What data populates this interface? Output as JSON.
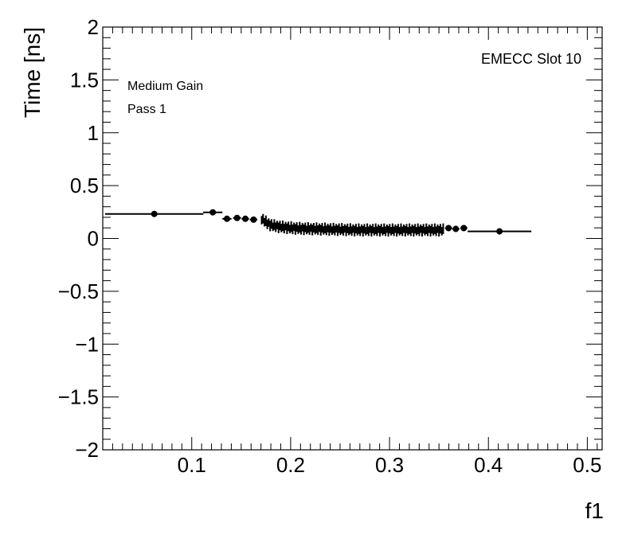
{
  "chart_data": {
    "type": "scatter",
    "xlabel": "f1",
    "ylabel": "Time [ns]",
    "xlim": [
      0.01,
      0.515
    ],
    "ylim": [
      -2,
      2
    ],
    "x_ticks": [
      "0.1",
      "0.2",
      "0.3",
      "0.4",
      "0.5"
    ],
    "y_ticks": [
      "2",
      "1.5",
      "1",
      "0.5",
      "0",
      "−0.5",
      "−1",
      "−1.5",
      "−2"
    ],
    "annotations": [
      "Medium Gain",
      "Pass 1"
    ],
    "corner_label": "EMECC Slot 10",
    "grid": false,
    "series": [
      {
        "marker_color": "#000000",
        "points": [
          {
            "x": 0.0621,
            "xerr": 0.0497,
            "y": 0.232,
            "yerr": 0.01
          },
          {
            "x": 0.1213,
            "xerr": 0.0097,
            "y": 0.247,
            "yerr": 0.015
          },
          {
            "x": 0.1356,
            "xerr": 0.0046,
            "y": 0.186,
            "yerr": 0.02
          },
          {
            "x": 0.1458,
            "xerr": 0.0041,
            "y": 0.194,
            "yerr": 0.02
          },
          {
            "x": 0.1542,
            "xerr": 0.0037,
            "y": 0.186,
            "yerr": 0.025
          },
          {
            "x": 0.1625,
            "xerr": 0.0038,
            "y": 0.178,
            "yerr": 0.02
          },
          {
            "x": 0.3597,
            "xerr": 0.0036,
            "y": 0.098,
            "yerr": 0.02
          },
          {
            "x": 0.367,
            "xerr": 0.0036,
            "y": 0.09,
            "yerr": 0.02
          },
          {
            "x": 0.3751,
            "xerr": 0.0036,
            "y": 0.098,
            "yerr": 0.02
          },
          {
            "x": 0.4112,
            "xerr": 0.0322,
            "y": 0.067,
            "yerr": 0.01
          }
        ],
        "dense_band": {
          "x_range": [
            0.17,
            0.355
          ],
          "count": 130,
          "y_values": [
            0.185,
            0.175,
            0.165,
            0.155,
            0.145,
            0.138,
            0.13,
            0.125,
            0.122,
            0.12,
            0.118,
            0.115,
            0.112,
            0.11,
            0.11,
            0.108,
            0.105,
            0.105,
            0.103,
            0.102,
            0.1,
            0.1,
            0.098,
            0.098,
            0.097,
            0.096,
            0.095,
            0.095,
            0.094,
            0.094,
            0.093,
            0.093,
            0.092,
            0.092,
            0.092,
            0.091,
            0.091,
            0.09,
            0.09,
            0.09,
            0.09,
            0.089,
            0.089,
            0.089,
            0.088,
            0.088,
            0.088,
            0.087,
            0.087,
            0.087,
            0.086,
            0.086,
            0.086,
            0.085,
            0.085,
            0.085,
            0.084,
            0.084,
            0.084,
            0.083,
            0.083,
            0.083,
            0.082,
            0.082,
            0.082,
            0.081,
            0.081,
            0.081,
            0.08,
            0.08,
            0.08,
            0.08,
            0.08,
            0.08,
            0.08,
            0.08,
            0.08,
            0.08,
            0.08,
            0.08,
            0.08,
            0.08,
            0.08,
            0.08,
            0.08,
            0.08,
            0.08,
            0.08,
            0.08,
            0.08,
            0.08,
            0.08,
            0.08,
            0.08,
            0.08,
            0.08,
            0.08,
            0.08,
            0.08,
            0.08,
            0.08,
            0.08,
            0.08,
            0.08,
            0.08,
            0.08,
            0.08,
            0.08,
            0.08,
            0.08,
            0.08,
            0.08,
            0.08,
            0.08,
            0.08,
            0.08,
            0.08,
            0.08,
            0.08,
            0.08,
            0.08,
            0.08,
            0.08,
            0.08,
            0.08,
            0.08,
            0.08,
            0.08,
            0.08,
            0.08
          ],
          "y_errors": [
            0.04,
            0.045,
            0.04,
            0.05,
            0.045,
            0.04,
            0.05,
            0.045,
            0.04,
            0.05,
            0.045,
            0.04,
            0.05,
            0.045,
            0.04,
            0.05,
            0.045,
            0.04,
            0.05,
            0.045,
            0.04,
            0.05,
            0.045,
            0.04,
            0.05,
            0.045,
            0.04,
            0.05,
            0.045,
            0.04,
            0.05,
            0.045,
            0.04,
            0.05,
            0.045,
            0.04,
            0.05,
            0.045,
            0.04,
            0.05,
            0.045,
            0.04,
            0.05,
            0.045,
            0.04,
            0.05,
            0.045,
            0.04,
            0.05,
            0.045,
            0.04,
            0.05,
            0.045,
            0.04,
            0.05,
            0.045,
            0.04,
            0.05,
            0.045,
            0.04,
            0.05,
            0.045,
            0.04,
            0.05,
            0.045,
            0.04,
            0.05,
            0.045,
            0.04,
            0.05,
            0.045,
            0.04,
            0.05,
            0.045,
            0.04,
            0.05,
            0.045,
            0.04,
            0.05,
            0.045,
            0.04,
            0.05,
            0.045,
            0.04,
            0.05,
            0.045,
            0.04,
            0.05,
            0.045,
            0.04,
            0.05,
            0.045,
            0.04,
            0.05,
            0.045,
            0.04,
            0.05,
            0.045,
            0.04,
            0.05,
            0.045,
            0.04,
            0.05,
            0.045,
            0.04,
            0.05,
            0.045,
            0.04,
            0.05,
            0.045,
            0.04,
            0.05,
            0.045,
            0.04,
            0.05,
            0.045,
            0.04,
            0.05,
            0.045,
            0.04,
            0.05,
            0.045,
            0.04,
            0.05,
            0.045,
            0.04,
            0.05,
            0.045,
            0.04,
            0.05
          ]
        }
      }
    ]
  }
}
